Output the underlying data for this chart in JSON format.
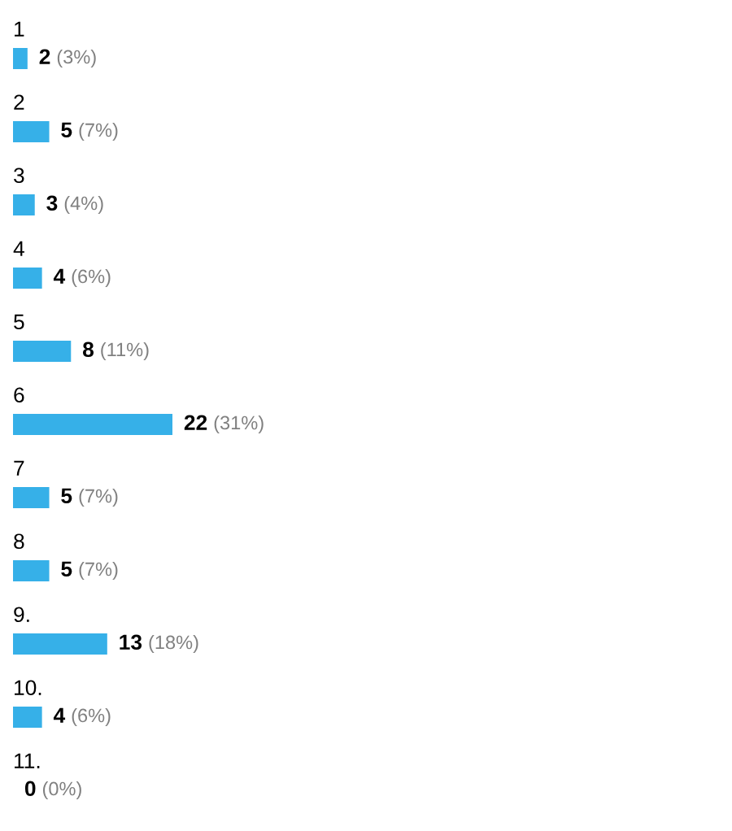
{
  "chart_data": {
    "type": "bar",
    "orientation": "horizontal",
    "categories": [
      "1",
      "2",
      "3",
      "4",
      "5",
      "6",
      "7",
      "8",
      "9.",
      "10.",
      "11."
    ],
    "values": [
      2,
      5,
      3,
      4,
      8,
      22,
      5,
      5,
      13,
      4,
      0
    ],
    "color": "#36b0e8",
    "value_labels": [
      "2 (3%)",
      "5 (7%)",
      "3 (4%)",
      "4 (6%)",
      "8 (11%)",
      "22 (31%)",
      "5 (7%)",
      "5 (7%)",
      "13 (18%)",
      "4 (6%)",
      "0 (0%)"
    ],
    "tick_labels": "y"
  }
}
